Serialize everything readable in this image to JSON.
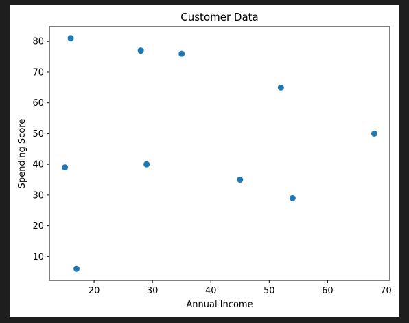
{
  "chart_data": {
    "type": "scatter",
    "title": "Customer Data",
    "xlabel": "Annual Income",
    "ylabel": "Spending Score",
    "xlim": [
      12.35,
      70.65
    ],
    "ylim": [
      2.25,
      84.75
    ],
    "xticks": [
      20,
      30,
      40,
      50,
      60,
      70
    ],
    "yticks": [
      10,
      20,
      30,
      40,
      50,
      60,
      70,
      80
    ],
    "grid": false,
    "marker_color": "#1f77b4",
    "points": [
      {
        "x": 15,
        "y": 39
      },
      {
        "x": 16,
        "y": 81
      },
      {
        "x": 17,
        "y": 6
      },
      {
        "x": 28,
        "y": 77
      },
      {
        "x": 29,
        "y": 40
      },
      {
        "x": 35,
        "y": 76
      },
      {
        "x": 45,
        "y": 35
      },
      {
        "x": 52,
        "y": 65
      },
      {
        "x": 54,
        "y": 29
      },
      {
        "x": 68,
        "y": 50
      }
    ]
  }
}
